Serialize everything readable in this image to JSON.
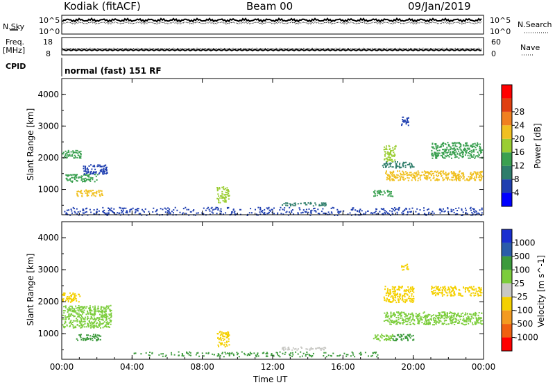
{
  "header": {
    "station": "Kodiak (fitACF)",
    "beam": "Beam 00",
    "date": "09/Jan/2019"
  },
  "top_strip": {
    "nsky_label": "N.Sky",
    "nsearch_label": "N.Search",
    "freq_label": "Freq.",
    "freq_unit": "[MHz]",
    "nave_label": "Nave",
    "cpid_label": "CPID",
    "cpid_value": "normal (fast) 151 RF",
    "noise_ticks_left": [
      "10^5",
      "10^0"
    ],
    "noise_ticks_right": [
      "10^5",
      "10^0"
    ],
    "freq_ticks": [
      "18",
      "8"
    ],
    "nave_ticks": [
      "60",
      "0"
    ]
  },
  "colors": {
    "power": [
      "#0000ff",
      "#1f3fb0",
      "#2e7d6b",
      "#3aa050",
      "#9acd32",
      "#f0c020",
      "#f08020",
      "#e04010",
      "#ff0000"
    ],
    "velocity": [
      "#1a2fd0",
      "#2a5caa",
      "#3c9a3c",
      "#7ccd3c",
      "#c8c8c4",
      "#f4d000",
      "#f39a20",
      "#f06010",
      "#ff0000"
    ]
  },
  "chart_data": [
    {
      "type": "heatmap",
      "name": "power",
      "ylabel": "Slant Range [km]",
      "xlabel": "",
      "colorbar_label": "Power [dB]",
      "colorbar_ticks": [
        "4",
        "8",
        "12",
        "16",
        "20",
        "24",
        "28"
      ],
      "xlim": [
        0,
        24
      ],
      "ylim": [
        200,
        4500
      ],
      "x_tick_labels": [
        "00:00",
        "04:00",
        "08:00",
        "12:00",
        "16:00",
        "20:00",
        "00:00"
      ],
      "y_tick_labels": [
        "1000",
        "2000",
        "3000",
        "4000"
      ],
      "x_ticks": [
        0,
        4,
        8,
        12,
        16,
        20,
        24
      ],
      "y_ticks": [
        1000,
        2000,
        3000,
        4000
      ],
      "echo_regions": [
        {
          "t0": 0.0,
          "t1": 1.1,
          "r0": 2000,
          "r1": 2250,
          "value": 14
        },
        {
          "t0": 0.2,
          "t1": 2.0,
          "r0": 1250,
          "r1": 1500,
          "value": 12
        },
        {
          "t0": 0.8,
          "t1": 2.3,
          "r0": 800,
          "r1": 1000,
          "value": 18
        },
        {
          "t0": 1.2,
          "t1": 2.6,
          "r0": 1500,
          "r1": 1800,
          "value": 6
        },
        {
          "t0": 8.8,
          "t1": 9.5,
          "r0": 600,
          "r1": 1100,
          "value": 16
        },
        {
          "t0": 12.5,
          "t1": 15.0,
          "r0": 500,
          "r1": 600,
          "value": 10
        },
        {
          "t0": 17.7,
          "t1": 18.8,
          "r0": 800,
          "r1": 1000,
          "value": 14
        },
        {
          "t0": 18.3,
          "t1": 23.9,
          "r0": 1300,
          "r1": 1600,
          "value": 20
        },
        {
          "t0": 18.2,
          "t1": 20.0,
          "r0": 1700,
          "r1": 1900,
          "value": 10
        },
        {
          "t0": 18.3,
          "t1": 19.0,
          "r0": 1900,
          "r1": 2400,
          "value": 16
        },
        {
          "t0": 21.0,
          "t1": 23.9,
          "r0": 2000,
          "r1": 2500,
          "value": 12
        },
        {
          "t0": 19.3,
          "t1": 19.7,
          "r0": 3000,
          "r1": 3300,
          "value": 6
        },
        {
          "t0": 0.0,
          "t1": 23.9,
          "r0": 200,
          "r1": 450,
          "value": 6
        }
      ]
    },
    {
      "type": "heatmap",
      "name": "velocity",
      "ylabel": "Slant Range [km]",
      "xlabel": "Time UT",
      "colorbar_label": "Velocity [m s^-1]",
      "colorbar_ticks": [
        "1000",
        "500",
        "100",
        "25",
        "-25",
        "-100",
        "-500",
        "-1000"
      ],
      "xlim": [
        0,
        24
      ],
      "ylim": [
        200,
        4500
      ],
      "x_tick_labels": [
        "00:00",
        "04:00",
        "08:00",
        "12:00",
        "16:00",
        "20:00",
        "00:00"
      ],
      "y_tick_labels": [
        "1000",
        "2000",
        "3000",
        "4000"
      ],
      "x_ticks": [
        0,
        4,
        8,
        12,
        16,
        20,
        24
      ],
      "y_ticks": [
        1000,
        2000,
        3000,
        4000
      ],
      "echo_regions": [
        {
          "t0": 0.0,
          "t1": 1.0,
          "r0": 2000,
          "r1": 2300,
          "value": -300
        },
        {
          "t0": 0.0,
          "t1": 2.8,
          "r0": 1200,
          "r1": 1900,
          "value": 0
        },
        {
          "t0": 0.8,
          "t1": 2.2,
          "r0": 800,
          "r1": 1000,
          "value": 60
        },
        {
          "t0": 8.8,
          "t1": 9.5,
          "r0": 600,
          "r1": 1100,
          "value": -300
        },
        {
          "t0": 12.5,
          "t1": 15.0,
          "r0": 500,
          "r1": 600,
          "value": -60
        },
        {
          "t0": 17.7,
          "t1": 18.8,
          "r0": 800,
          "r1": 1000,
          "value": 0
        },
        {
          "t0": 18.8,
          "t1": 20.0,
          "r0": 800,
          "r1": 1000,
          "value": 60
        },
        {
          "t0": 18.3,
          "t1": 23.9,
          "r0": 1300,
          "r1": 1700,
          "value": 0
        },
        {
          "t0": 18.3,
          "t1": 20.0,
          "r0": 2000,
          "r1": 2500,
          "value": -300
        },
        {
          "t0": 21.0,
          "t1": 23.9,
          "r0": 2200,
          "r1": 2500,
          "value": -300
        },
        {
          "t0": 19.3,
          "t1": 19.7,
          "r0": 3000,
          "r1": 3200,
          "value": -300
        },
        {
          "t0": 4.0,
          "t1": 18.0,
          "r0": 300,
          "r1": 450,
          "value": 60
        }
      ]
    }
  ]
}
